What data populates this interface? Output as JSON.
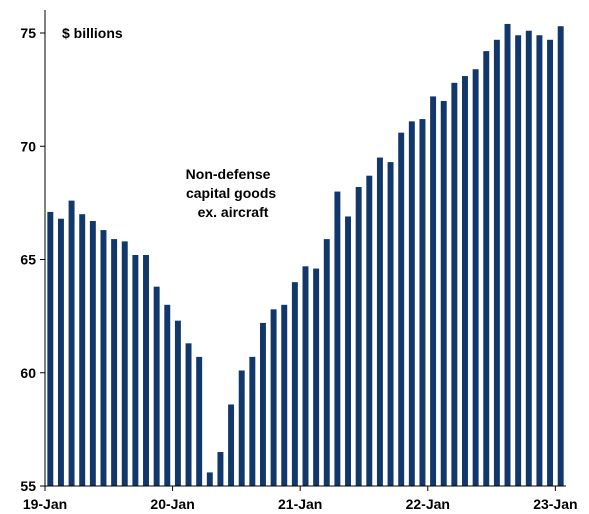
{
  "chart_data": {
    "type": "bar",
    "ylabel": "$ billions",
    "annotation": [
      "Non-defense",
      "capital goods",
      "ex. aircraft"
    ],
    "ylim": [
      55,
      76
    ],
    "yticks": [
      55,
      60,
      65,
      70,
      75
    ],
    "xtick_labels": [
      {
        "index": 0,
        "label": "19-Jan"
      },
      {
        "index": 12,
        "label": "20-Jan"
      },
      {
        "index": 24,
        "label": "21-Jan"
      },
      {
        "index": 36,
        "label": "22-Jan"
      },
      {
        "index": 48,
        "label": "23-Jan"
      }
    ],
    "bar_color": "#12386b",
    "series": [
      {
        "values": [
          67.1,
          66.8,
          67.6,
          67.0,
          66.7,
          66.3,
          65.9,
          65.8,
          65.2,
          65.2,
          63.8,
          63.0,
          62.3,
          61.3,
          60.7,
          55.6,
          56.5,
          58.6,
          60.1,
          60.7,
          62.2,
          62.8,
          63.0,
          64.0,
          64.7,
          64.6,
          65.9,
          68.0,
          66.9,
          68.2,
          68.7,
          69.5,
          69.3,
          70.6,
          71.1,
          71.2,
          72.2,
          72.0,
          72.8,
          73.1,
          73.4,
          74.2,
          74.7,
          75.4,
          74.9,
          75.1,
          74.9,
          74.7,
          75.3
        ]
      }
    ]
  }
}
